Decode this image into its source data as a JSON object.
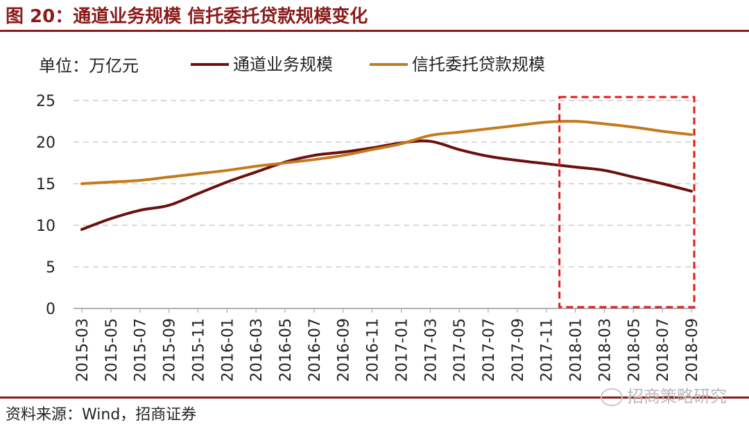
{
  "header": {
    "title": "图 20：通道业务规模 信托委托贷款规模变化"
  },
  "footer": {
    "source": "资料来源：Wind，招商证券",
    "watermark": "招商策略研究"
  },
  "colors": {
    "accent": "#8B1A1A",
    "series1": "#6B0F0F",
    "series2": "#C47A1E",
    "highlight_box": "#E31A1A",
    "grid": "#D9D9D9"
  },
  "chart_data": {
    "type": "line",
    "unit_label": "单位：万亿元",
    "ylim": [
      0,
      25
    ],
    "yticks": [
      0,
      5,
      10,
      15,
      20,
      25
    ],
    "grid": true,
    "legend_position": "top",
    "categories": [
      "2015-03",
      "2015-05",
      "2015-07",
      "2015-09",
      "2015-11",
      "2016-01",
      "2016-03",
      "2016-05",
      "2016-07",
      "2016-09",
      "2016-11",
      "2017-01",
      "2017-03",
      "2017-05",
      "2017-07",
      "2017-09",
      "2017-11",
      "2018-01",
      "2018-03",
      "2018-05",
      "2018-07",
      "2018-09"
    ],
    "series": [
      {
        "name": "通道业务规模",
        "values": [
          9.5,
          10.8,
          11.8,
          12.4,
          13.8,
          15.2,
          16.4,
          17.6,
          18.4,
          18.8,
          19.3,
          19.9,
          20.1,
          19.1,
          18.3,
          17.8,
          17.4,
          17.0,
          16.6,
          15.8,
          15.0,
          14.1
        ]
      },
      {
        "name": "信托委托贷款规模",
        "values": [
          15.0,
          15.2,
          15.4,
          15.8,
          16.2,
          16.6,
          17.1,
          17.5,
          17.9,
          18.4,
          19.1,
          19.8,
          20.8,
          21.2,
          21.6,
          22.0,
          22.4,
          22.5,
          22.2,
          21.8,
          21.3,
          20.9
        ]
      }
    ],
    "highlight_range": [
      "2017-12",
      "2018-09"
    ]
  }
}
